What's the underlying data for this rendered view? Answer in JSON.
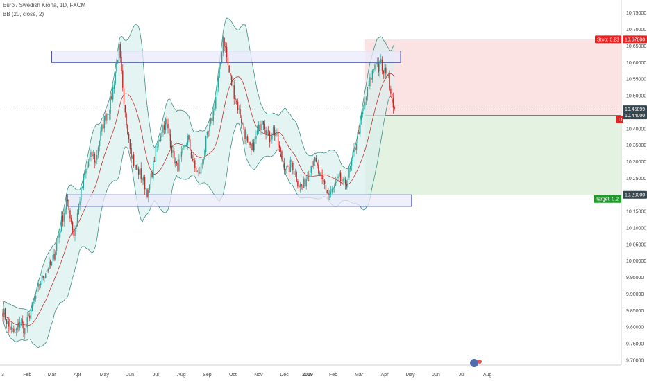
{
  "header": {
    "symbol_line": "Euro / Swedish Krona, 1D, FXCM",
    "indicator_line": "BB (20, close, 2)"
  },
  "colors": {
    "bull": "#26a69a",
    "bear": "#c62828",
    "bb_band": "#3f8f86",
    "bb_fill": "#d9f0ec",
    "bb_basis": "#b71c1c",
    "zone_fill": "#e9ebfb",
    "zone_stroke": "#3949ab",
    "stop_fill": "#fbe3e3",
    "target_fill": "#e3f2e1",
    "stop_tag": "#ef1f1f",
    "target_tag": "#1e9c2a",
    "price_tag": "#37474f"
  },
  "chart_data": {
    "type": "candlestick",
    "title": "Euro / Swedish Krona, 1D, FXCM",
    "indicator": "BB (20, close, 2)",
    "ylim": [
      9.685,
      10.785
    ],
    "y_ticks": [
      "10.75000",
      "10.70000",
      "10.65000",
      "10.60000",
      "10.55000",
      "10.50000",
      "10.45000",
      "10.40000",
      "10.35000",
      "10.30000",
      "10.25000",
      "10.20000",
      "10.15000",
      "10.10000",
      "10.05000",
      "10.00000",
      "9.95000",
      "9.90000",
      "9.85000",
      "9.80000",
      "9.75000",
      "9.70000"
    ],
    "x_ticks": [
      "3",
      "Feb",
      "Mar",
      "Apr",
      "May",
      "Jun",
      "Jul",
      "Aug",
      "Sep",
      "Oct",
      "Nov",
      "Dec",
      "2019",
      "Feb",
      "Mar",
      "Apr",
      "May",
      "Jun",
      "Jul",
      "Aug"
    ],
    "x_tick_bold": "2019",
    "price_path": [
      [
        0,
        9.85
      ],
      [
        5,
        9.8
      ],
      [
        10,
        9.78
      ],
      [
        14,
        9.82
      ],
      [
        18,
        9.79
      ],
      [
        22,
        9.84
      ],
      [
        26,
        9.88
      ],
      [
        30,
        9.93
      ],
      [
        35,
        9.97
      ],
      [
        40,
        9.99
      ],
      [
        44,
        10.05
      ],
      [
        48,
        10.12
      ],
      [
        52,
        10.18
      ],
      [
        55,
        10.14
      ],
      [
        58,
        10.08
      ],
      [
        60,
        10.12
      ],
      [
        63,
        10.19
      ],
      [
        67,
        10.26
      ],
      [
        70,
        10.3
      ],
      [
        73,
        10.32
      ],
      [
        76,
        10.3
      ],
      [
        78,
        10.35
      ],
      [
        81,
        10.4
      ],
      [
        84,
        10.44
      ],
      [
        87,
        10.46
      ],
      [
        90,
        10.52
      ],
      [
        93,
        10.6
      ],
      [
        95,
        10.64
      ],
      [
        97,
        10.56
      ],
      [
        99,
        10.46
      ],
      [
        102,
        10.4
      ],
      [
        105,
        10.33
      ],
      [
        108,
        10.28
      ],
      [
        111,
        10.27
      ],
      [
        114,
        10.25
      ],
      [
        117,
        10.22
      ],
      [
        119,
        10.2
      ],
      [
        121,
        10.25
      ],
      [
        124,
        10.31
      ],
      [
        127,
        10.36
      ],
      [
        130,
        10.4
      ],
      [
        133,
        10.42
      ],
      [
        136,
        10.38
      ],
      [
        139,
        10.32
      ],
      [
        142,
        10.28
      ],
      [
        145,
        10.3
      ],
      [
        148,
        10.34
      ],
      [
        151,
        10.37
      ],
      [
        154,
        10.32
      ],
      [
        157,
        10.28
      ],
      [
        160,
        10.26
      ],
      [
        163,
        10.3
      ],
      [
        166,
        10.36
      ],
      [
        169,
        10.4
      ],
      [
        172,
        10.45
      ],
      [
        175,
        10.52
      ],
      [
        178,
        10.6
      ],
      [
        180,
        10.68
      ],
      [
        182,
        10.64
      ],
      [
        184,
        10.59
      ],
      [
        186,
        10.55
      ],
      [
        188,
        10.52
      ],
      [
        191,
        10.48
      ],
      [
        194,
        10.44
      ],
      [
        197,
        10.4
      ],
      [
        200,
        10.35
      ],
      [
        203,
        10.33
      ],
      [
        206,
        10.36
      ],
      [
        209,
        10.4
      ],
      [
        212,
        10.44
      ],
      [
        215,
        10.4
      ],
      [
        218,
        10.37
      ],
      [
        221,
        10.4
      ],
      [
        224,
        10.37
      ],
      [
        227,
        10.32
      ],
      [
        230,
        10.29
      ],
      [
        233,
        10.27
      ],
      [
        236,
        10.3
      ],
      [
        239,
        10.26
      ],
      [
        242,
        10.23
      ],
      [
        245,
        10.22
      ],
      [
        248,
        10.25
      ],
      [
        251,
        10.28
      ],
      [
        254,
        10.31
      ],
      [
        257,
        10.28
      ],
      [
        260,
        10.24
      ],
      [
        263,
        10.23
      ],
      [
        266,
        10.2
      ],
      [
        269,
        10.21
      ],
      [
        272,
        10.23
      ],
      [
        275,
        10.25
      ],
      [
        278,
        10.23
      ],
      [
        281,
        10.24
      ],
      [
        284,
        10.28
      ],
      [
        287,
        10.33
      ],
      [
        290,
        10.38
      ],
      [
        293,
        10.43
      ],
      [
        296,
        10.48
      ],
      [
        299,
        10.53
      ],
      [
        302,
        10.57
      ],
      [
        305,
        10.61
      ],
      [
        307,
        10.58
      ],
      [
        309,
        10.6
      ],
      [
        311,
        10.56
      ],
      [
        313,
        10.58
      ],
      [
        315,
        10.55
      ],
      [
        317,
        10.52
      ],
      [
        319,
        10.48
      ],
      [
        320,
        10.459
      ]
    ],
    "candle_count": 321,
    "x_tick_candle_index": [
      0,
      20,
      40,
      61,
      83,
      104,
      125,
      146,
      167,
      188,
      209,
      230,
      249,
      270,
      291,
      312,
      333,
      354,
      375,
      396
    ],
    "resistance_zone": {
      "y_top": 10.635,
      "y_bottom": 10.6,
      "from": 40,
      "to": 325
    },
    "support_zone": {
      "y_top": 10.2,
      "y_bottom": 10.165,
      "from": 52,
      "to": 334
    },
    "position": {
      "entry": 10.44,
      "stop": 10.67,
      "target": 10.2,
      "from": 296,
      "to": 400
    },
    "last_price": 10.45899,
    "tags": {
      "stop": "Stop: 0.23",
      "stop_price": "10.67000",
      "last_price": "10.45899",
      "entry_price": "10.44000",
      "target": "Target: 0.2",
      "target_price": "10.20000",
      "entry_marker": "O"
    }
  }
}
